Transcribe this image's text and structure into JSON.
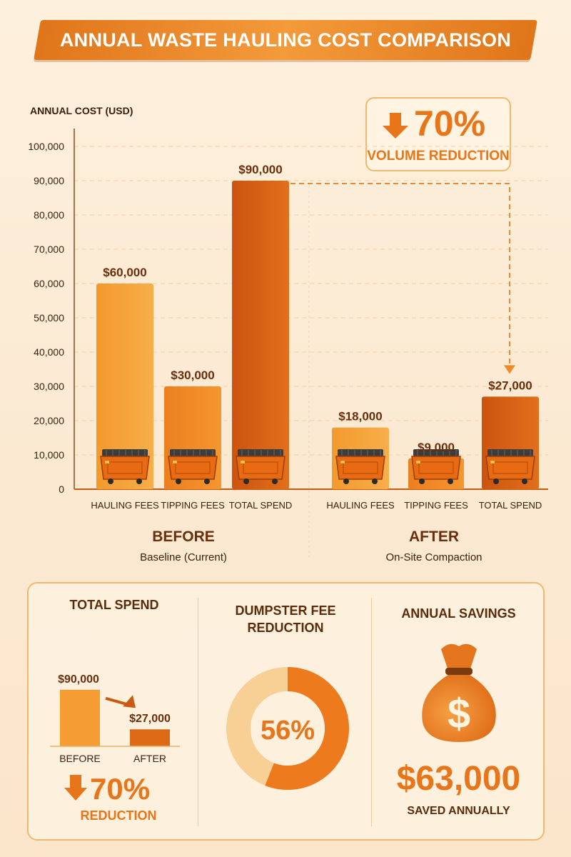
{
  "title": "ANNUAL WASTE HAULING COST COMPARISON",
  "chart_data": {
    "type": "bar",
    "ylabel": "ANNUAL COST (USD)",
    "ylim": [
      0,
      100000
    ],
    "yticks": [
      "0",
      "10,000",
      "20,000",
      "30,000",
      "40,000",
      "50,000",
      "60,000",
      "70,000",
      "80,000",
      "90,000",
      "100,000"
    ],
    "grid": true,
    "groups": [
      {
        "name": "BEFORE",
        "subtitle": "Baseline (Current)",
        "categories": [
          "HAULING FEES",
          "TIPPING FEES",
          "TOTAL SPEND"
        ],
        "values": [
          60000,
          30000,
          90000
        ],
        "labels": [
          "$60,000",
          "$30,000",
          "$90,000"
        ]
      },
      {
        "name": "AFTER",
        "subtitle": "On-Site Compaction",
        "categories": [
          "HAULING FEES",
          "TIPPING FEES",
          "TOTAL SPEND"
        ],
        "values": [
          18000,
          9000,
          27000
        ],
        "labels": [
          "$18,000",
          "$9,000",
          "$27,000"
        ]
      }
    ],
    "annotation": {
      "value": "70%",
      "text": "VOLUME REDUCTION"
    }
  },
  "summary": {
    "total_spend": {
      "title": "TOTAL SPEND",
      "before_label": "$90,000",
      "after_label": "$27,000",
      "before_value": 90000,
      "after_value": 27000,
      "before_cat": "BEFORE",
      "after_cat": "AFTER",
      "reduction_value": "70%",
      "reduction_text": "REDUCTION"
    },
    "dumpster": {
      "title_line1": "DUMPSTER FEE",
      "title_line2": "REDUCTION",
      "percent_label": "56%",
      "percent_value": 56
    },
    "savings": {
      "title": "ANNUAL SAVINGS",
      "amount": "$63,000",
      "caption": "SAVED ANNUALLY",
      "icon": "money-bag-icon"
    }
  },
  "colors": {
    "accent": "#e8751a",
    "bar_light": "#f6a13a",
    "bar_mid": "#e67a1c",
    "bar_dark": "#cf5a10",
    "text_dark": "#5a2a0c",
    "donut_light": "#f8cf95"
  }
}
